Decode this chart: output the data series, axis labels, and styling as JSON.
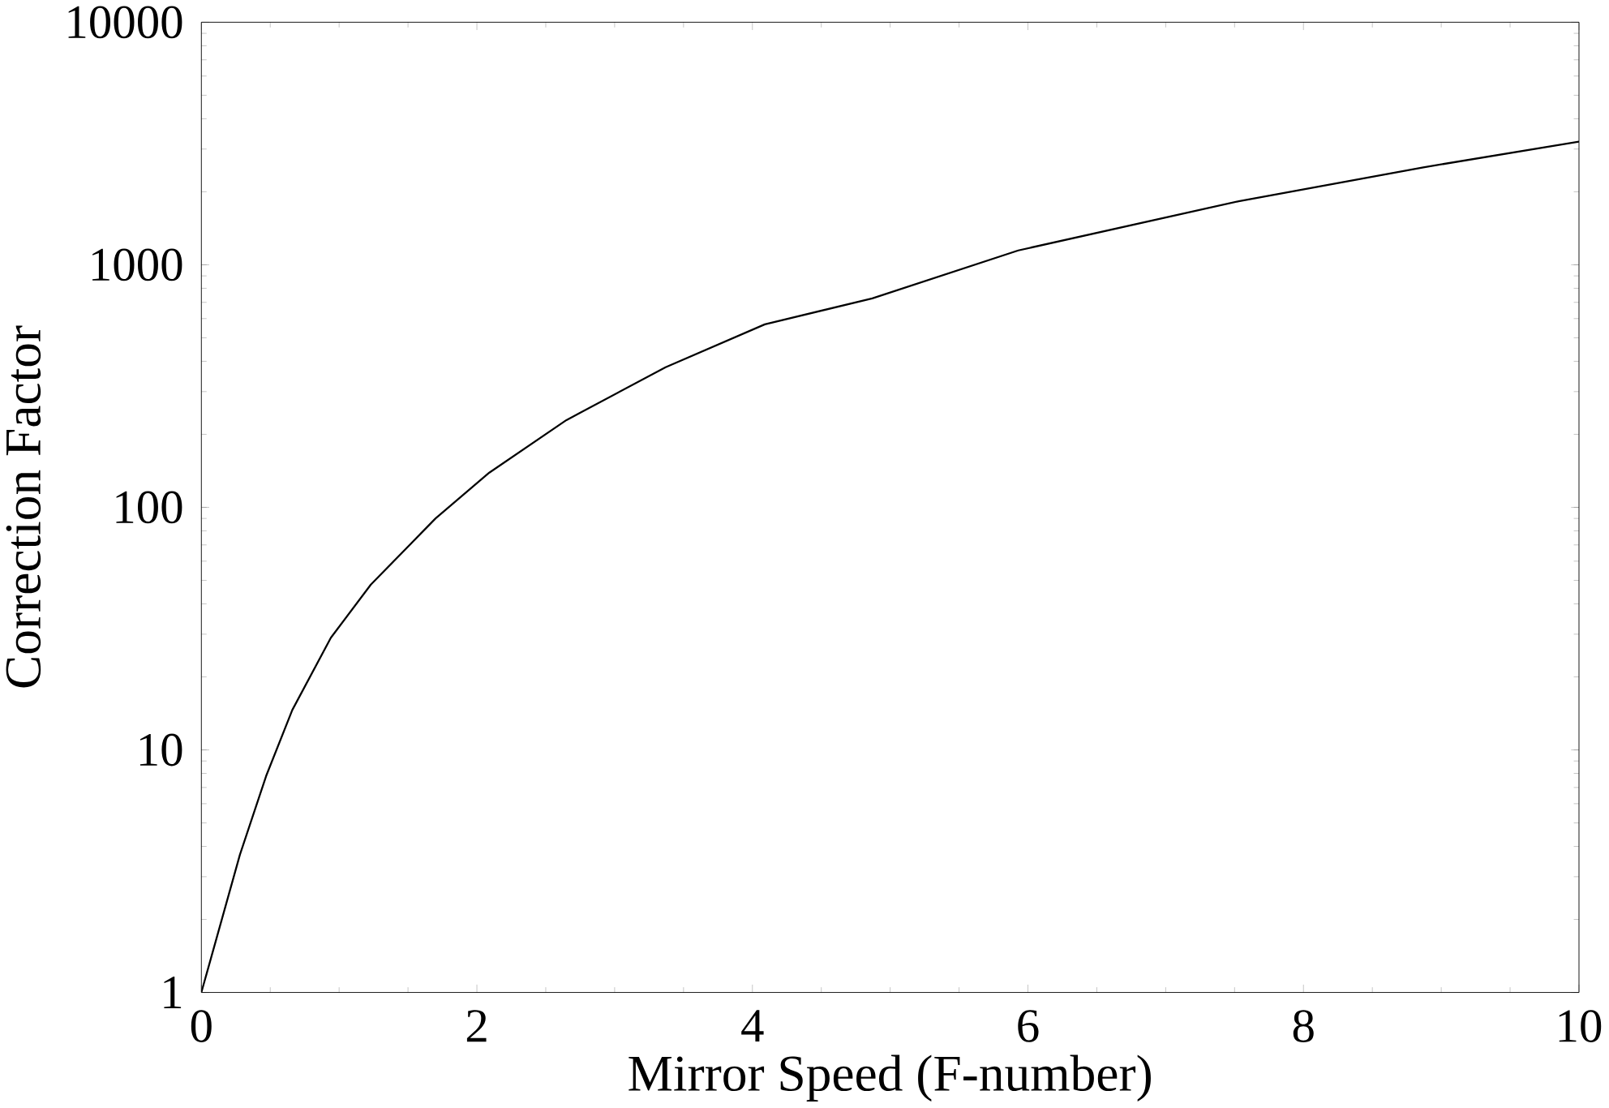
{
  "chart_data": {
    "type": "line",
    "xlabel": "Mirror Speed (F-number)",
    "ylabel": "Correction Factor",
    "log": "y",
    "grid": false,
    "marker": "none",
    "line_style": "solid",
    "xlim": [
      0,
      10
    ],
    "ylim": [
      1,
      10000
    ],
    "xticks": [
      0,
      2,
      4,
      6,
      8,
      10
    ],
    "yticks": [
      1,
      10,
      100,
      1000,
      10000
    ],
    "series": [
      {
        "color": "#000000",
        "x": [
          0,
          0.28,
          0.47,
          0.66,
          0.94,
          1.23,
          1.7,
          2.09,
          2.65,
          3.37,
          4.09,
          4.87,
          5.93,
          7.53,
          8.87,
          10
        ],
        "values": [
          1,
          3.7,
          7.8,
          14.6,
          29,
          48,
          90,
          139,
          229,
          378,
          568,
          727,
          1146,
          1829,
          2522,
          3221
        ]
      }
    ]
  }
}
